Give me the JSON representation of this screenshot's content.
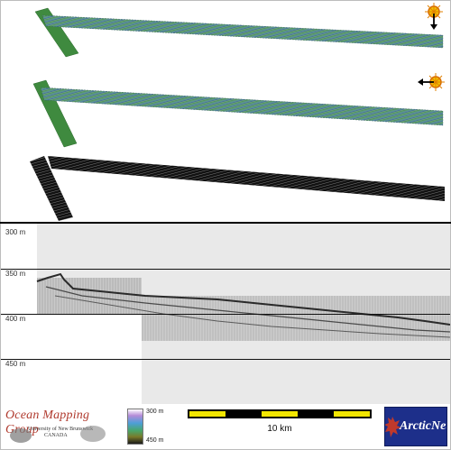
{
  "profile": {
    "depth_labels": [
      "300 m",
      "350 m",
      "400 m",
      "450 m"
    ]
  },
  "colorbar": {
    "top_label": "300 m",
    "bottom_label": "450 m",
    "colors": [
      "#ffffff",
      "#b58bd8",
      "#4d9fd8",
      "#48a66a",
      "#7a7a2a",
      "#1a1a1a"
    ]
  },
  "scale": {
    "label": "10 km",
    "colors": {
      "light": "#f2e600",
      "dark": "#000000"
    }
  },
  "logos": {
    "omg_title": "Ocean Mapping Group",
    "omg_line1": "University of New Brunswick",
    "omg_line2": "CANADA",
    "arcticnet": "ArcticNet"
  },
  "icons": [
    "sun-icon",
    "arrow-down-icon",
    "arrow-left-icon"
  ],
  "colors": {
    "swath_green": "#4a8f4a",
    "swath_teal": "#5a9a9a",
    "swath_blue": "#3e5f8c",
    "swath_black": "#111111",
    "profile_bg": "#e9e9e9"
  }
}
